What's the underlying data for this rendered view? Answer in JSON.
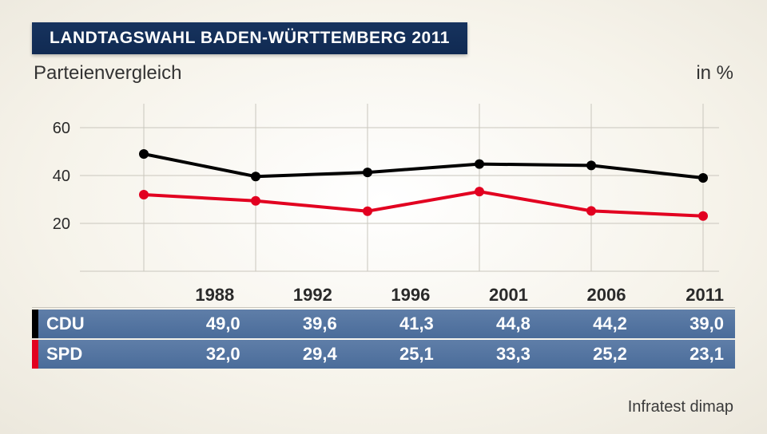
{
  "title": "LANDTAGSWAHL BADEN-WÜRTTEMBERG 2011",
  "subtitle": "Parteienvergleich",
  "unit_label": "in %",
  "source": "Infratest dimap",
  "chart": {
    "type": "line",
    "x_categories": [
      "1988",
      "1992",
      "1996",
      "2001",
      "2006",
      "2011"
    ],
    "ylim": [
      0,
      70
    ],
    "yticks": [
      20,
      40,
      60
    ],
    "ytick_labels": [
      "20",
      "40",
      "60"
    ],
    "grid_color": "#c9c6bd",
    "axis_color": "#4a4a4a",
    "tick_fontsize": 20,
    "line_width": 4,
    "marker_radius": 6,
    "plot_bg": "transparent",
    "series": [
      {
        "name": "CDU",
        "color": "#000000",
        "values": [
          49.0,
          39.6,
          41.3,
          44.8,
          44.2,
          39.0
        ],
        "display": [
          "49,0",
          "39,6",
          "41,3",
          "44,8",
          "44,2",
          "39,0"
        ]
      },
      {
        "name": "SPD",
        "color": "#e20020",
        "values": [
          32.0,
          29.4,
          25.1,
          33.3,
          25.2,
          23.1
        ],
        "display": [
          "32,0",
          "29,4",
          "25,1",
          "33,3",
          "25,2",
          "23,1"
        ]
      }
    ]
  },
  "table": {
    "columns": [
      "1988",
      "1992",
      "1996",
      "2001",
      "2006",
      "2011"
    ],
    "header_text_color": "#2a2a2a",
    "row_bg": "#5a7aa6",
    "row_text_color": "#ffffff",
    "rows": [
      {
        "label": "CDU",
        "swatch_color": "#000000",
        "cells": [
          "49,0",
          "39,6",
          "41,3",
          "44,8",
          "44,2",
          "39,0"
        ]
      },
      {
        "label": "SPD",
        "swatch_color": "#e20020",
        "cells": [
          "32,0",
          "29,4",
          "25,1",
          "33,3",
          "25,2",
          "23,1"
        ]
      }
    ]
  }
}
